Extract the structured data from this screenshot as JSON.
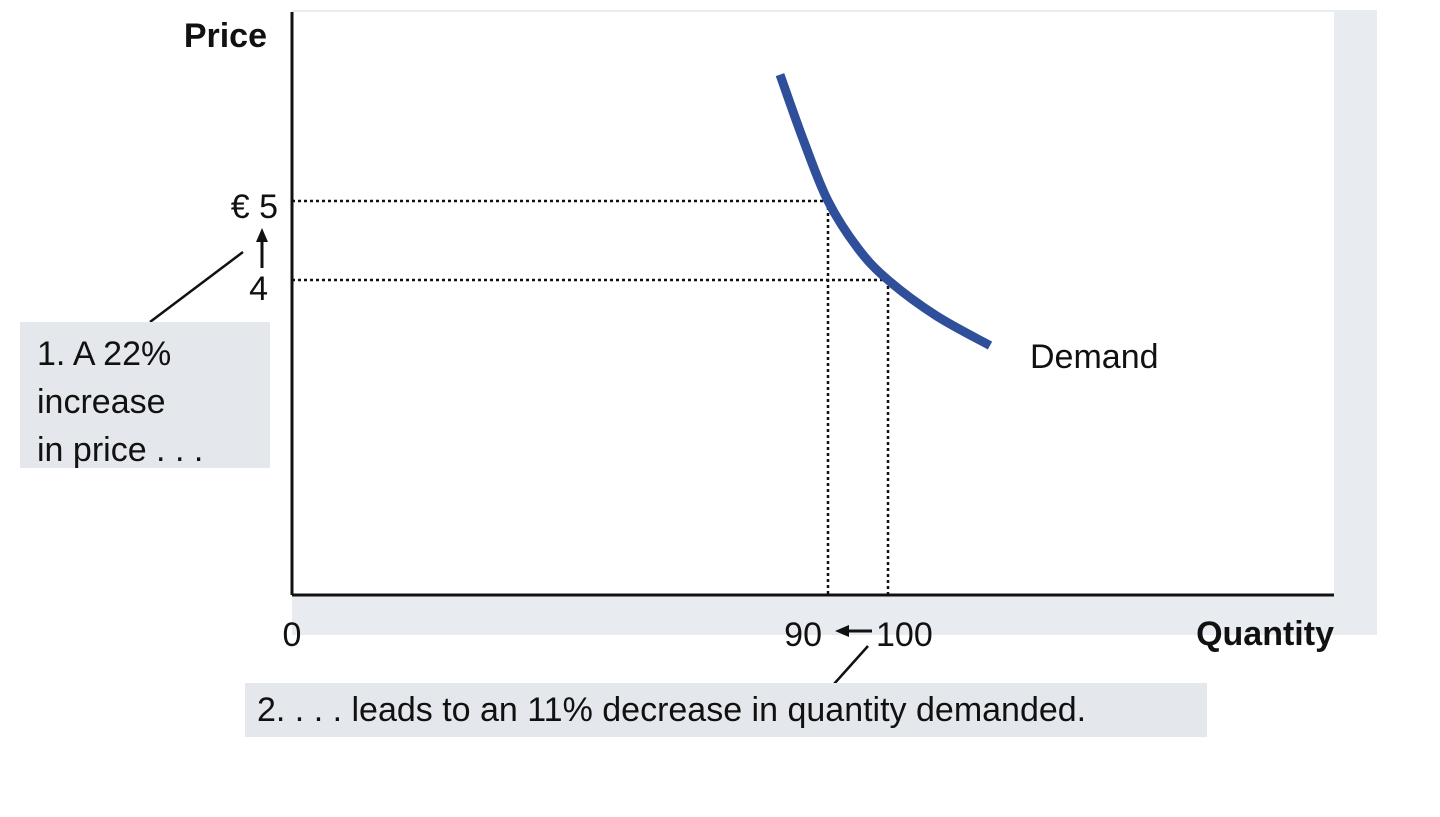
{
  "chart_data": {
    "type": "line",
    "xlabel": "Quantity",
    "ylabel": "Price",
    "series": [
      {
        "name": "Demand",
        "points": [
          [
            82,
            6.6
          ],
          [
            86,
            5.75
          ],
          [
            90,
            5.0
          ],
          [
            95,
            4.4
          ],
          [
            100,
            4.0
          ],
          [
            108,
            3.55
          ],
          [
            117,
            3.17
          ]
        ]
      }
    ],
    "reference_points": [
      {
        "x": 90,
        "y": 5
      },
      {
        "x": 100,
        "y": 4
      }
    ],
    "x_ticks": [
      "0",
      "90",
      "100"
    ],
    "y_ticks": [
      "€ 5",
      "4"
    ],
    "annotations": {
      "price_change": [
        "1. A 22%",
        "increase",
        "in price . . ."
      ],
      "quantity_change": "2. . . . leads to an 11% decrease in quantity demanded."
    },
    "colors": {
      "demand_curve": "#2f4f9a",
      "plot_background": "#e8ebef",
      "note_background": "#e4e7eb"
    }
  }
}
